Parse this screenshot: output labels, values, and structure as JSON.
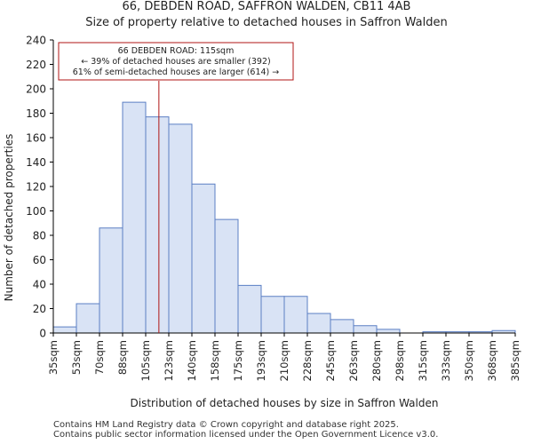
{
  "chart_data": {
    "type": "bar",
    "title": "66, DEBDEN ROAD, SAFFRON WALDEN, CB11 4AB",
    "subtitle": "Size of property relative to detached houses in Saffron Walden",
    "xlabel": "Distribution of detached houses by size in Saffron Walden",
    "ylabel": "Number of detached properties",
    "ylim": [
      0,
      240
    ],
    "yticks": [
      0,
      20,
      40,
      60,
      80,
      100,
      120,
      140,
      160,
      180,
      200,
      220,
      240
    ],
    "bin_edges": [
      35,
      52.5,
      70,
      87.5,
      105,
      122.5,
      140,
      157.5,
      175,
      192.5,
      210,
      227.5,
      245,
      262.5,
      280,
      297.5,
      315,
      332.5,
      350,
      367.5,
      385
    ],
    "tick_labels": [
      "35sqm",
      "53sqm",
      "70sqm",
      "88sqm",
      "105sqm",
      "123sqm",
      "140sqm",
      "158sqm",
      "175sqm",
      "193sqm",
      "210sqm",
      "228sqm",
      "245sqm",
      "263sqm",
      "280sqm",
      "298sqm",
      "315sqm",
      "333sqm",
      "350sqm",
      "368sqm",
      "385sqm"
    ],
    "values": [
      5,
      24,
      86,
      189,
      177,
      171,
      122,
      93,
      39,
      30,
      30,
      16,
      11,
      6,
      3,
      0,
      1,
      1,
      1,
      2
    ],
    "marker_value": 115,
    "annotation": {
      "line1": "66 DEBDEN ROAD: 115sqm",
      "line2": "← 39% of detached houses are smaller (392)",
      "line3": "61% of semi-detached houses are larger (614) →"
    },
    "bar_fill": "#d9e3f5",
    "bar_stroke": "#5b7fc4",
    "marker_color": "#b01515"
  },
  "footer": {
    "line1": "Contains HM Land Registry data © Crown copyright and database right 2025.",
    "line2": "Contains public sector information licensed under the Open Government Licence v3.0."
  }
}
